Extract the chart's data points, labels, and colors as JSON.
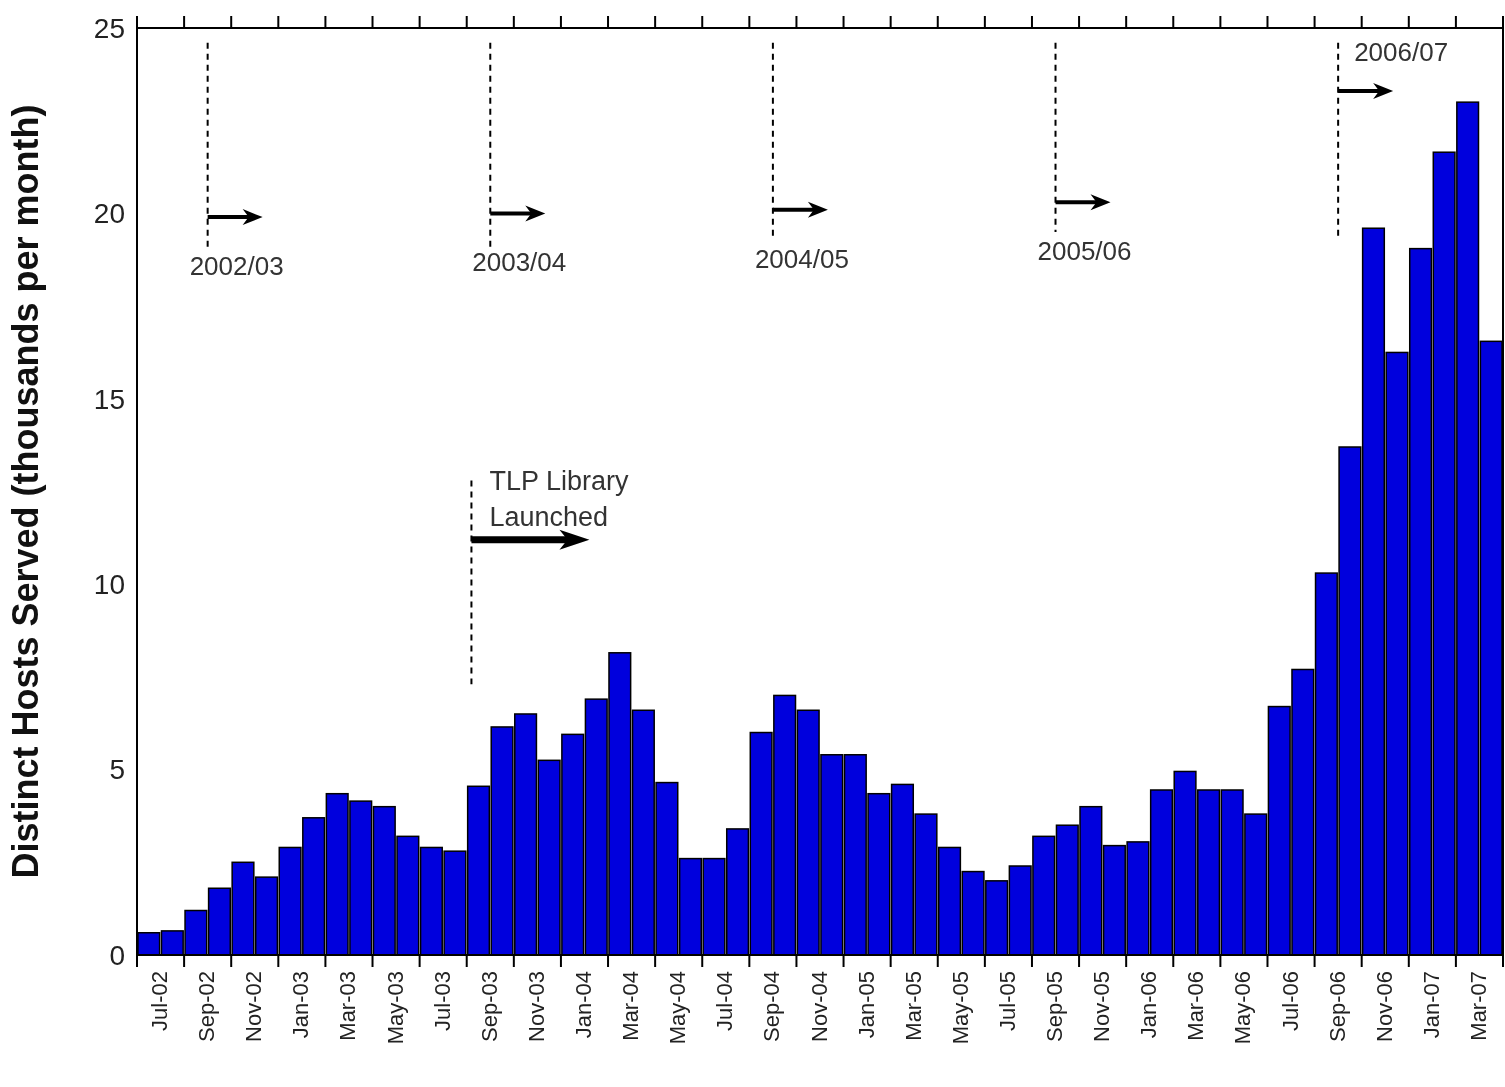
{
  "chart_data": {
    "type": "bar",
    "ylabel": "Distinct Hosts Served (thousands per month)",
    "categories": [
      "Jul-02",
      null,
      "Sep-02",
      null,
      "Nov-02",
      null,
      "Jan-03",
      null,
      "Mar-03",
      null,
      "May-03",
      null,
      "Jul-03",
      null,
      "Sep-03",
      null,
      "Nov-03",
      null,
      "Jan-04",
      null,
      "Mar-04",
      null,
      "May-04",
      null,
      "Jul-04",
      null,
      "Sep-04",
      null,
      "Nov-04",
      null,
      "Jan-05",
      null,
      "Mar-05",
      null,
      "May-05",
      null,
      "Jul-05",
      null,
      "Sep-05",
      null,
      "Nov-05",
      null,
      "Jan-06",
      null,
      "Mar-06",
      null,
      "May-06",
      null,
      "Jul-06",
      null,
      "Sep-06",
      null,
      "Nov-06",
      null,
      "Jan-07",
      null,
      "Mar-07",
      null
    ],
    "values": [
      0.6,
      0.65,
      1.2,
      1.8,
      2.5,
      2.1,
      2.9,
      3.7,
      4.35,
      4.15,
      4.0,
      3.2,
      2.9,
      2.8,
      4.55,
      6.15,
      6.5,
      5.25,
      5.95,
      6.9,
      8.15,
      6.6,
      4.65,
      2.6,
      2.6,
      3.4,
      6.0,
      7.0,
      6.6,
      5.4,
      5.4,
      4.35,
      4.6,
      3.8,
      2.9,
      2.25,
      2.0,
      2.4,
      3.2,
      3.5,
      4.0,
      2.95,
      3.05,
      4.45,
      4.95,
      4.45,
      4.45,
      3.8,
      6.7,
      7.7,
      10.3,
      13.7,
      19.6,
      16.25,
      19.05,
      21.65,
      23.0,
      16.55
    ],
    "color": "#0000dd",
    "ylim": [
      0,
      25
    ],
    "yticks": [
      0,
      5,
      10,
      15,
      20,
      25
    ],
    "grid": false,
    "annotations": [
      "2002/03",
      "TLP Library Launched",
      "2003/04",
      "2004/05",
      "2005/06",
      "2006/07"
    ]
  }
}
